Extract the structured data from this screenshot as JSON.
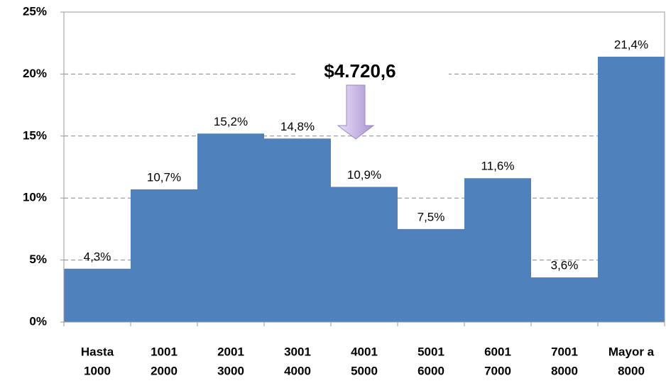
{
  "chart_data": {
    "type": "bar",
    "categories": [
      [
        "Hasta",
        "1000"
      ],
      [
        "1001",
        "2000"
      ],
      [
        "2001",
        "3000"
      ],
      [
        "3001",
        "4000"
      ],
      [
        "4001",
        "5000"
      ],
      [
        "5001",
        "6000"
      ],
      [
        "6001",
        "7000"
      ],
      [
        "7001",
        "8000"
      ],
      [
        "Mayor a",
        "8000"
      ]
    ],
    "values": [
      4.3,
      10.7,
      15.2,
      14.8,
      10.9,
      7.5,
      11.6,
      3.6,
      21.4
    ],
    "value_labels": [
      "4,3%",
      "10,7%",
      "15,2%",
      "14,8%",
      "10,9%",
      "7,5%",
      "11,6%",
      "3,6%",
      "21,4%"
    ],
    "color": "#4f81bd",
    "ylim": [
      0,
      25
    ],
    "yticks": [
      {
        "value": 0,
        "label": "0%"
      },
      {
        "value": 5,
        "label": "5%"
      },
      {
        "value": 10,
        "label": "10%"
      },
      {
        "value": 15,
        "label": "15%"
      },
      {
        "value": 20,
        "label": "20%"
      },
      {
        "value": 25,
        "label": "25%"
      }
    ],
    "grid": true,
    "annotation": "$4.720,6"
  }
}
